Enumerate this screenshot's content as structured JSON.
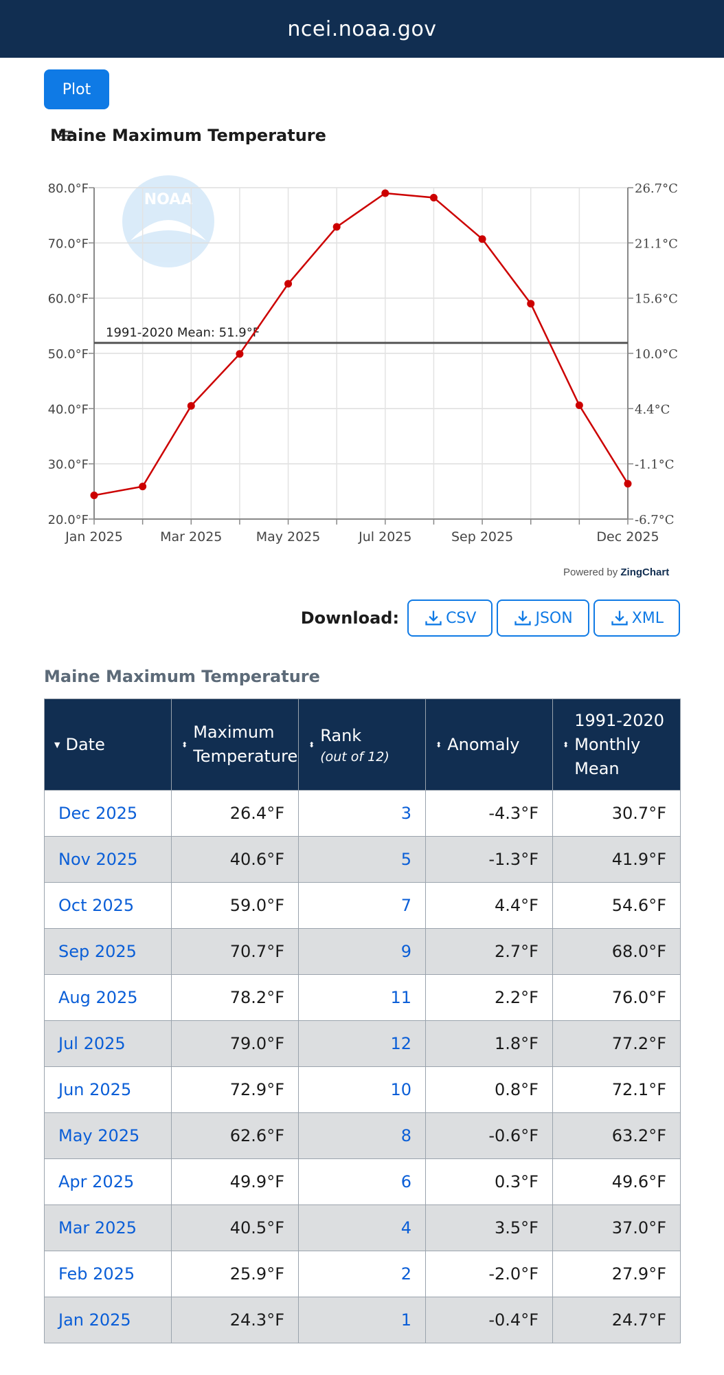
{
  "header": {
    "site": "ncei.noaa.gov"
  },
  "plot_button": "Plot",
  "chart_data": {
    "type": "line",
    "title": "Maine Maximum Temperature",
    "x": [
      "Jan 2025",
      "Feb 2025",
      "Mar 2025",
      "Apr 2025",
      "May 2025",
      "Jun 2025",
      "Jul 2025",
      "Aug 2025",
      "Sep 2025",
      "Oct 2025",
      "Nov 2025",
      "Dec 2025"
    ],
    "x_tick_labels": [
      "Jan 2025",
      "Mar 2025",
      "May 2025",
      "Jul 2025",
      "Sep 2025",
      "Dec 2025"
    ],
    "series": [
      {
        "name": "Maximum Temperature",
        "color": "#cc0000",
        "values": [
          24.3,
          25.9,
          40.5,
          49.9,
          62.6,
          72.9,
          79.0,
          78.2,
          70.7,
          59.0,
          40.6,
          26.4
        ]
      }
    ],
    "ylim": [
      20,
      80
    ],
    "y_ticks": [
      20,
      30,
      40,
      50,
      60,
      70,
      80
    ],
    "y_tick_labels": [
      "20.0°F",
      "30.0°F",
      "40.0°F",
      "50.0°F",
      "60.0°F",
      "70.0°F",
      "80.0°F"
    ],
    "y2_tick_labels": [
      "-6.7°C",
      "-1.1°C",
      "4.4°C",
      "10.0°C",
      "15.6°C",
      "21.1°C",
      "26.7°C"
    ],
    "reference_line": {
      "value": 51.9,
      "label": "1991-2020 Mean: 51.9°F",
      "color": "#555555"
    },
    "watermark": "NOAA",
    "grid": true
  },
  "powered_by": {
    "prefix": "Powered by",
    "brand": "ZingChart"
  },
  "download": {
    "label": "Download:",
    "buttons": [
      "CSV",
      "JSON",
      "XML"
    ]
  },
  "table": {
    "title": "Maine Maximum Temperature",
    "headers": {
      "date": "Date",
      "max_temp": "Maximum Temperature",
      "rank": "Rank",
      "rank_sub": "(out of 12)",
      "anomaly": "Anomaly",
      "mean": "1991-2020 Monthly Mean"
    },
    "rows": [
      {
        "date": "Dec 2025",
        "value": "26.4°F",
        "rank": "3",
        "anomaly": "-4.3°F",
        "mean": "30.7°F"
      },
      {
        "date": "Nov 2025",
        "value": "40.6°F",
        "rank": "5",
        "anomaly": "-1.3°F",
        "mean": "41.9°F"
      },
      {
        "date": "Oct 2025",
        "value": "59.0°F",
        "rank": "7",
        "anomaly": "4.4°F",
        "mean": "54.6°F"
      },
      {
        "date": "Sep 2025",
        "value": "70.7°F",
        "rank": "9",
        "anomaly": "2.7°F",
        "mean": "68.0°F"
      },
      {
        "date": "Aug 2025",
        "value": "78.2°F",
        "rank": "11",
        "anomaly": "2.2°F",
        "mean": "76.0°F"
      },
      {
        "date": "Jul 2025",
        "value": "79.0°F",
        "rank": "12",
        "anomaly": "1.8°F",
        "mean": "77.2°F"
      },
      {
        "date": "Jun 2025",
        "value": "72.9°F",
        "rank": "10",
        "anomaly": "0.8°F",
        "mean": "72.1°F"
      },
      {
        "date": "May 2025",
        "value": "62.6°F",
        "rank": "8",
        "anomaly": "-0.6°F",
        "mean": "63.2°F"
      },
      {
        "date": "Apr 2025",
        "value": "49.9°F",
        "rank": "6",
        "anomaly": "0.3°F",
        "mean": "49.6°F"
      },
      {
        "date": "Mar 2025",
        "value": "40.5°F",
        "rank": "4",
        "anomaly": "3.5°F",
        "mean": "37.0°F"
      },
      {
        "date": "Feb 2025",
        "value": "25.9°F",
        "rank": "2",
        "anomaly": "-2.0°F",
        "mean": "27.9°F"
      },
      {
        "date": "Jan 2025",
        "value": "24.3°F",
        "rank": "1",
        "anomaly": "-0.4°F",
        "mean": "24.7°F"
      }
    ]
  }
}
